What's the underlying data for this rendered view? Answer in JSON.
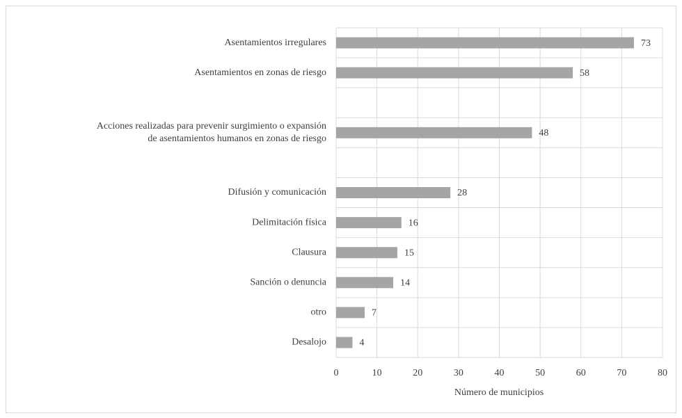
{
  "chart_data": {
    "type": "bar",
    "orientation": "horizontal",
    "x_label": "Número de municipios",
    "categories": [
      "Asentamientos irregulares",
      "Asentamientos en zonas de riesgo",
      null,
      [
        "Acciones realizadas para prevenir surgimiento o expansión",
        "de asentamientos humanos en zonas de riesgo"
      ],
      null,
      "Difusión y comunicación",
      "Delimitación física",
      "Clausura",
      "Sanción o denuncia",
      "otro",
      "Desalojo"
    ],
    "values": [
      73,
      58,
      null,
      48,
      null,
      28,
      16,
      15,
      14,
      7,
      4
    ],
    "color": "#a5a5a5",
    "xlim": [
      0,
      80
    ],
    "xticks": [
      0,
      10,
      20,
      30,
      40,
      50,
      60,
      70,
      80
    ],
    "grid": true
  }
}
